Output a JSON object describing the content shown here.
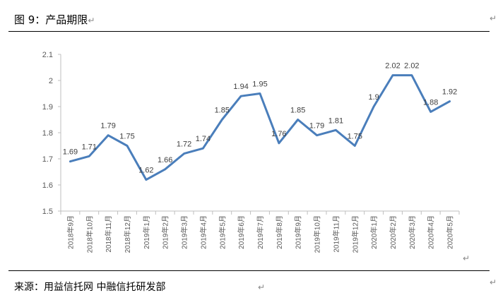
{
  "header": {
    "figure_title": "图 9：产品期限",
    "return_mark": "↵"
  },
  "footer": {
    "source_text": "来源：用益信托网  中融信托研发部",
    "return_mark": "↵"
  },
  "chart_data": {
    "type": "line",
    "title": "",
    "xlabel": "",
    "ylabel": "",
    "categories": [
      "2018年9月",
      "2018年10月",
      "2018年11月",
      "2018年12月",
      "2019年1月",
      "2019年2月",
      "2019年3月",
      "2019年4月",
      "2019年5月",
      "2019年6月",
      "2019年7月",
      "2019年8月",
      "2019年9月",
      "2019年10月",
      "2019年11月",
      "2019年12月",
      "2020年1月",
      "2020年2月",
      "2020年3月",
      "2020年4月",
      "2020年5月"
    ],
    "values": [
      1.69,
      1.71,
      1.79,
      1.75,
      1.62,
      1.66,
      1.72,
      1.74,
      1.85,
      1.94,
      1.95,
      1.76,
      1.85,
      1.79,
      1.81,
      1.75,
      1.9,
      2.02,
      2.02,
      1.88,
      1.92
    ],
    "value_labels": [
      "1.69",
      "1.71",
      "1.79",
      "1.75",
      "1.62",
      "1.66",
      "1.72",
      "1.74",
      "1.85",
      "1.94",
      "1.95",
      "1.76",
      "1.85",
      "1.79",
      "1.81",
      "1.75",
      "1.9",
      "2.02",
      "2.02",
      "1.88",
      "1.92"
    ],
    "ylim": [
      1.5,
      2.1
    ],
    "yticks": [
      1.5,
      1.6,
      1.7,
      1.8,
      1.9,
      2.0,
      2.1
    ],
    "ytick_labels": [
      "1.5",
      "1.6",
      "1.7",
      "1.8",
      "1.9",
      "2",
      "2.1"
    ],
    "grid": false,
    "legend": "none",
    "colors": {
      "line": "#4a7ebb",
      "axis": "#bfbfbf",
      "label": "#404040",
      "ticks": "#595959"
    }
  }
}
